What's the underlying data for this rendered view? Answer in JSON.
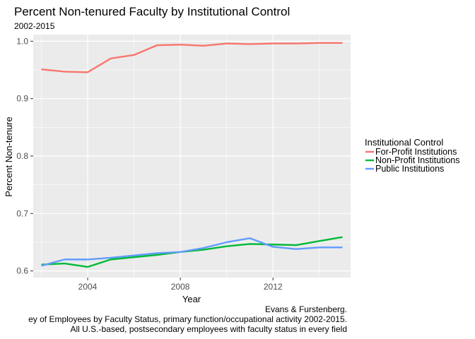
{
  "chart_data": {
    "type": "line",
    "title": "Percent Non-tenured Faculty by Institutional Control",
    "subtitle": "2002-2015",
    "xlabel": "Year",
    "ylabel": "Percent Non-tenure",
    "xlim": [
      2001.65,
      2015.35
    ],
    "ylim": [
      0.5885,
      1.0115
    ],
    "xticks": [
      2004,
      2008,
      2012
    ],
    "xtick_labels": [
      "2004",
      "2008",
      "2012"
    ],
    "yticks": [
      0.6,
      0.7,
      0.8,
      0.9,
      1.0
    ],
    "ytick_labels": [
      "0.6",
      "0.7",
      "0.8",
      "0.9",
      "1.0"
    ],
    "grid": true,
    "legend": {
      "title": "Institutional Control",
      "position": "right"
    },
    "x": [
      2002,
      2003,
      2004,
      2005,
      2006,
      2007,
      2008,
      2009,
      2010,
      2011,
      2012,
      2013,
      2014,
      2015
    ],
    "series": [
      {
        "name": "For-Profit Institutions",
        "color": "#F8766D",
        "values": [
          0.951,
          0.947,
          0.946,
          0.97,
          0.976,
          0.993,
          0.994,
          0.992,
          0.996,
          0.995,
          0.996,
          0.996,
          0.997,
          0.997
        ]
      },
      {
        "name": "Non-Profit Institutions",
        "color": "#00BA38",
        "values": [
          0.611,
          0.613,
          0.607,
          0.62,
          0.624,
          0.628,
          0.633,
          0.637,
          0.643,
          0.647,
          0.646,
          0.645,
          0.652,
          0.659
        ]
      },
      {
        "name": "Public Institutions",
        "color": "#619CFF",
        "values": [
          0.609,
          0.62,
          0.62,
          0.623,
          0.627,
          0.631,
          0.633,
          0.64,
          0.65,
          0.657,
          0.642,
          0.638,
          0.641,
          0.641
        ]
      }
    ],
    "caption": [
      "Evans & Furstenberg.",
      "ey of Employees by Faculty Status, primary function/occupational activity 2002-2015.",
      "All U.S.-based, postsecondary employees with faculty status in every field"
    ]
  },
  "colors": {
    "panel_bg": "#EBEBEB",
    "grid": "#FFFFFF"
  }
}
